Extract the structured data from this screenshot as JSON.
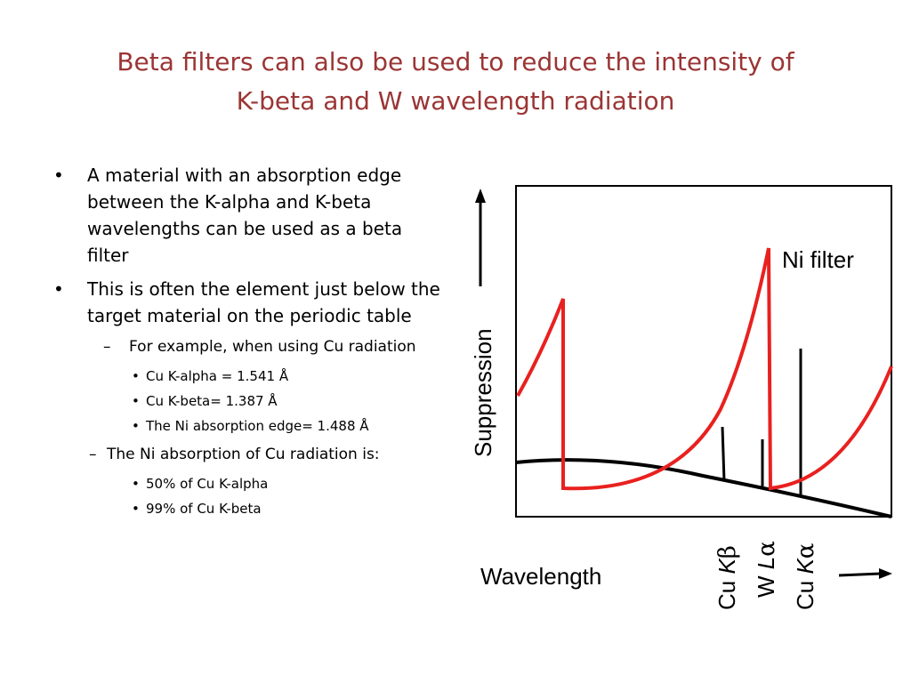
{
  "slide": {
    "title_line1": "Beta filters can also be used to reduce the intensity of",
    "title_line2": "K-beta and W wavelength radiation"
  },
  "bullets": {
    "b1": "A material with an absorption edge between the K-alpha and K-beta wavelengths can be used as a beta filter",
    "b2": "This is often the element just below the target material on the periodic table",
    "b2_sub": "For example, when using Cu radiation",
    "b2_sub_items": [
      "Cu K-alpha = 1.541 Å",
      "Cu K-beta= 1.387 Å",
      "The Ni absorption edge= 1.488 Å"
    ],
    "b3": "The Ni absorption of Cu radiation is:",
    "b3_items": [
      "50% of Cu K-alpha",
      "99% of Cu K-beta"
    ]
  },
  "diagram": {
    "filter_label": "Ni filter",
    "y_axis_label": "Suppression",
    "x_axis_label": "Wavelength",
    "peak_labels": [
      {
        "prefix": "Cu ",
        "italic": "K",
        "greek": "β"
      },
      {
        "prefix": "W ",
        "italic": "L",
        "greek": "α"
      },
      {
        "prefix": "Cu ",
        "italic": "K",
        "greek": "α"
      }
    ],
    "colors": {
      "filter_curve": "#e8211f",
      "background_curve": "#000000",
      "title": "#9b3535"
    }
  }
}
